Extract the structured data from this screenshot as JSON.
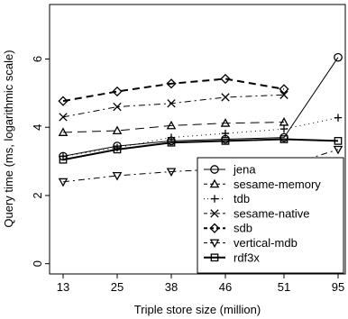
{
  "chart_data": {
    "type": "line",
    "xlabel": "Triple store size (million)",
    "ylabel": "Query time (ms, logarithmic scale)",
    "categories": [
      "13",
      "25",
      "38",
      "46",
      "51",
      "95"
    ],
    "yticks": [
      0,
      2,
      4,
      6
    ],
    "ylim": [
      -0.3,
      7.6
    ],
    "grid": false,
    "legend_position": "bottom-right",
    "series": [
      {
        "name": "jena",
        "marker": "circle",
        "dash": "solid",
        "width": 1,
        "values": [
          3.15,
          3.45,
          3.6,
          3.65,
          3.7,
          6.05
        ]
      },
      {
        "name": "sesame-memory",
        "marker": "triangle-up",
        "dash": "longdash",
        "width": 1,
        "values": [
          3.85,
          3.9,
          4.05,
          4.12,
          4.15,
          null
        ]
      },
      {
        "name": "tdb",
        "marker": "plus",
        "dash": "dotted",
        "width": 1,
        "values": [
          3.15,
          3.4,
          3.7,
          3.82,
          3.95,
          4.28
        ]
      },
      {
        "name": "sesame-native",
        "marker": "cross",
        "dash": "dashdot",
        "width": 1,
        "values": [
          4.3,
          4.6,
          4.7,
          4.88,
          4.95,
          null
        ]
      },
      {
        "name": "sdb",
        "marker": "diamond",
        "dash": "dashed",
        "width": 2,
        "values": [
          4.77,
          5.05,
          5.28,
          5.42,
          5.12,
          null
        ]
      },
      {
        "name": "vertical-mdb",
        "marker": "triangle-down",
        "dash": "dashdot",
        "width": 1,
        "values": [
          2.4,
          2.58,
          2.7,
          2.78,
          2.85,
          3.35
        ]
      },
      {
        "name": "rdf3x",
        "marker": "square",
        "dash": "solid",
        "width": 2,
        "values": [
          3.05,
          3.35,
          3.55,
          3.6,
          3.65,
          3.6
        ]
      }
    ]
  }
}
